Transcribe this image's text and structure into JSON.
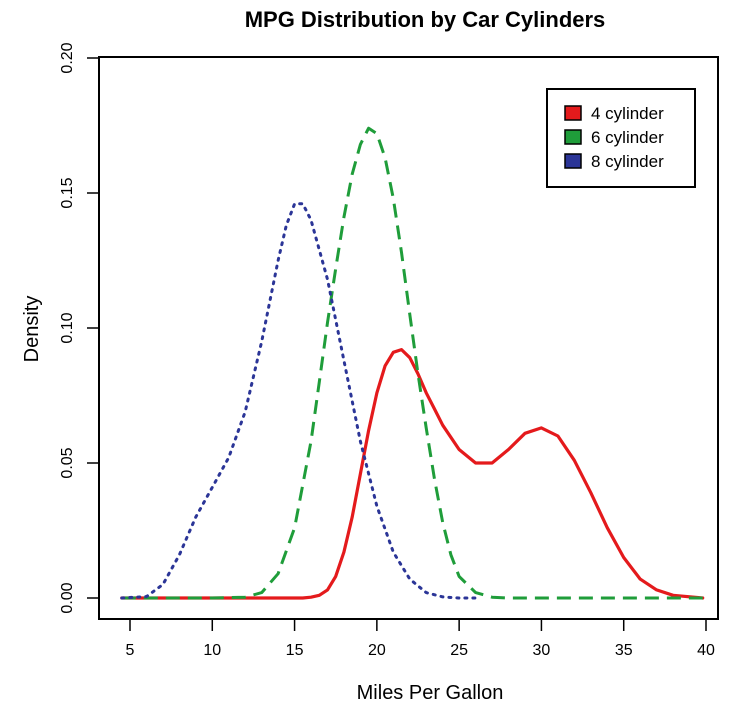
{
  "chart_data": {
    "type": "line",
    "title": "MPG Distribution by Car Cylinders",
    "xlabel": "Miles Per Gallon",
    "ylabel": "Density",
    "xlim": [
      4.5,
      39.8
    ],
    "ylim": [
      0.0,
      0.2
    ],
    "x_ticks": [
      "5",
      "10",
      "15",
      "20",
      "25",
      "30",
      "35",
      "40"
    ],
    "y_ticks": [
      "0.00",
      "0.05",
      "0.10",
      "0.15",
      "0.20"
    ],
    "grid": false,
    "legend_position": "top-right",
    "series": [
      {
        "name": "4 cylinder",
        "color": "#e41a1c",
        "style": "solid",
        "points": [
          [
            4.5,
            0.0
          ],
          [
            10,
            0.0
          ],
          [
            14,
            0.0
          ],
          [
            15.5,
            0.0
          ],
          [
            16,
            0.0003
          ],
          [
            16.5,
            0.001
          ],
          [
            17,
            0.003
          ],
          [
            17.5,
            0.008
          ],
          [
            18,
            0.017
          ],
          [
            18.5,
            0.03
          ],
          [
            19,
            0.046
          ],
          [
            19.5,
            0.062
          ],
          [
            20,
            0.076
          ],
          [
            20.5,
            0.086
          ],
          [
            21,
            0.091
          ],
          [
            21.5,
            0.092
          ],
          [
            22,
            0.089
          ],
          [
            22.5,
            0.083
          ],
          [
            23,
            0.076
          ],
          [
            23.5,
            0.07
          ],
          [
            24,
            0.064
          ],
          [
            25,
            0.055
          ],
          [
            26,
            0.05
          ],
          [
            27,
            0.05
          ],
          [
            28,
            0.055
          ],
          [
            29,
            0.061
          ],
          [
            30,
            0.063
          ],
          [
            31,
            0.06
          ],
          [
            32,
            0.051
          ],
          [
            33,
            0.039
          ],
          [
            34,
            0.026
          ],
          [
            35,
            0.015
          ],
          [
            36,
            0.007
          ],
          [
            37,
            0.003
          ],
          [
            38,
            0.001
          ],
          [
            39.8,
            0.0
          ]
        ]
      },
      {
        "name": "6 cylinder",
        "color": "#1f9d3a",
        "style": "dashed",
        "points": [
          [
            4.5,
            0.0
          ],
          [
            8,
            0.0
          ],
          [
            10,
            0.0
          ],
          [
            12,
            0.0003
          ],
          [
            13,
            0.002
          ],
          [
            14,
            0.009
          ],
          [
            15,
            0.026
          ],
          [
            16,
            0.058
          ],
          [
            16.5,
            0.08
          ],
          [
            17,
            0.102
          ],
          [
            17.5,
            0.122
          ],
          [
            18,
            0.141
          ],
          [
            18.5,
            0.157
          ],
          [
            19,
            0.168
          ],
          [
            19.5,
            0.174
          ],
          [
            20,
            0.172
          ],
          [
            20.5,
            0.163
          ],
          [
            21,
            0.148
          ],
          [
            21.5,
            0.128
          ],
          [
            22,
            0.105
          ],
          [
            22.5,
            0.083
          ],
          [
            23,
            0.063
          ],
          [
            23.5,
            0.044
          ],
          [
            24,
            0.028
          ],
          [
            24.5,
            0.016
          ],
          [
            25,
            0.008
          ],
          [
            26,
            0.002
          ],
          [
            27,
            0.0003
          ],
          [
            28,
            0.0
          ],
          [
            32,
            0.0
          ],
          [
            36,
            0.0
          ],
          [
            39.8,
            0.0
          ]
        ]
      },
      {
        "name": "8 cylinder",
        "color": "#2b3597",
        "style": "dotted",
        "points": [
          [
            4.5,
            0.0
          ],
          [
            6,
            0.0005
          ],
          [
            7,
            0.005
          ],
          [
            8,
            0.016
          ],
          [
            9,
            0.03
          ],
          [
            10,
            0.041
          ],
          [
            11,
            0.052
          ],
          [
            12,
            0.069
          ],
          [
            13,
            0.095
          ],
          [
            14,
            0.125
          ],
          [
            14.5,
            0.138
          ],
          [
            15,
            0.146
          ],
          [
            15.5,
            0.146
          ],
          [
            16,
            0.14
          ],
          [
            17,
            0.118
          ],
          [
            18,
            0.088
          ],
          [
            19,
            0.058
          ],
          [
            20,
            0.034
          ],
          [
            21,
            0.017
          ],
          [
            22,
            0.007
          ],
          [
            23,
            0.002
          ],
          [
            24,
            0.0004
          ],
          [
            25,
            0.0
          ],
          [
            26,
            0.0
          ]
        ]
      }
    ]
  }
}
